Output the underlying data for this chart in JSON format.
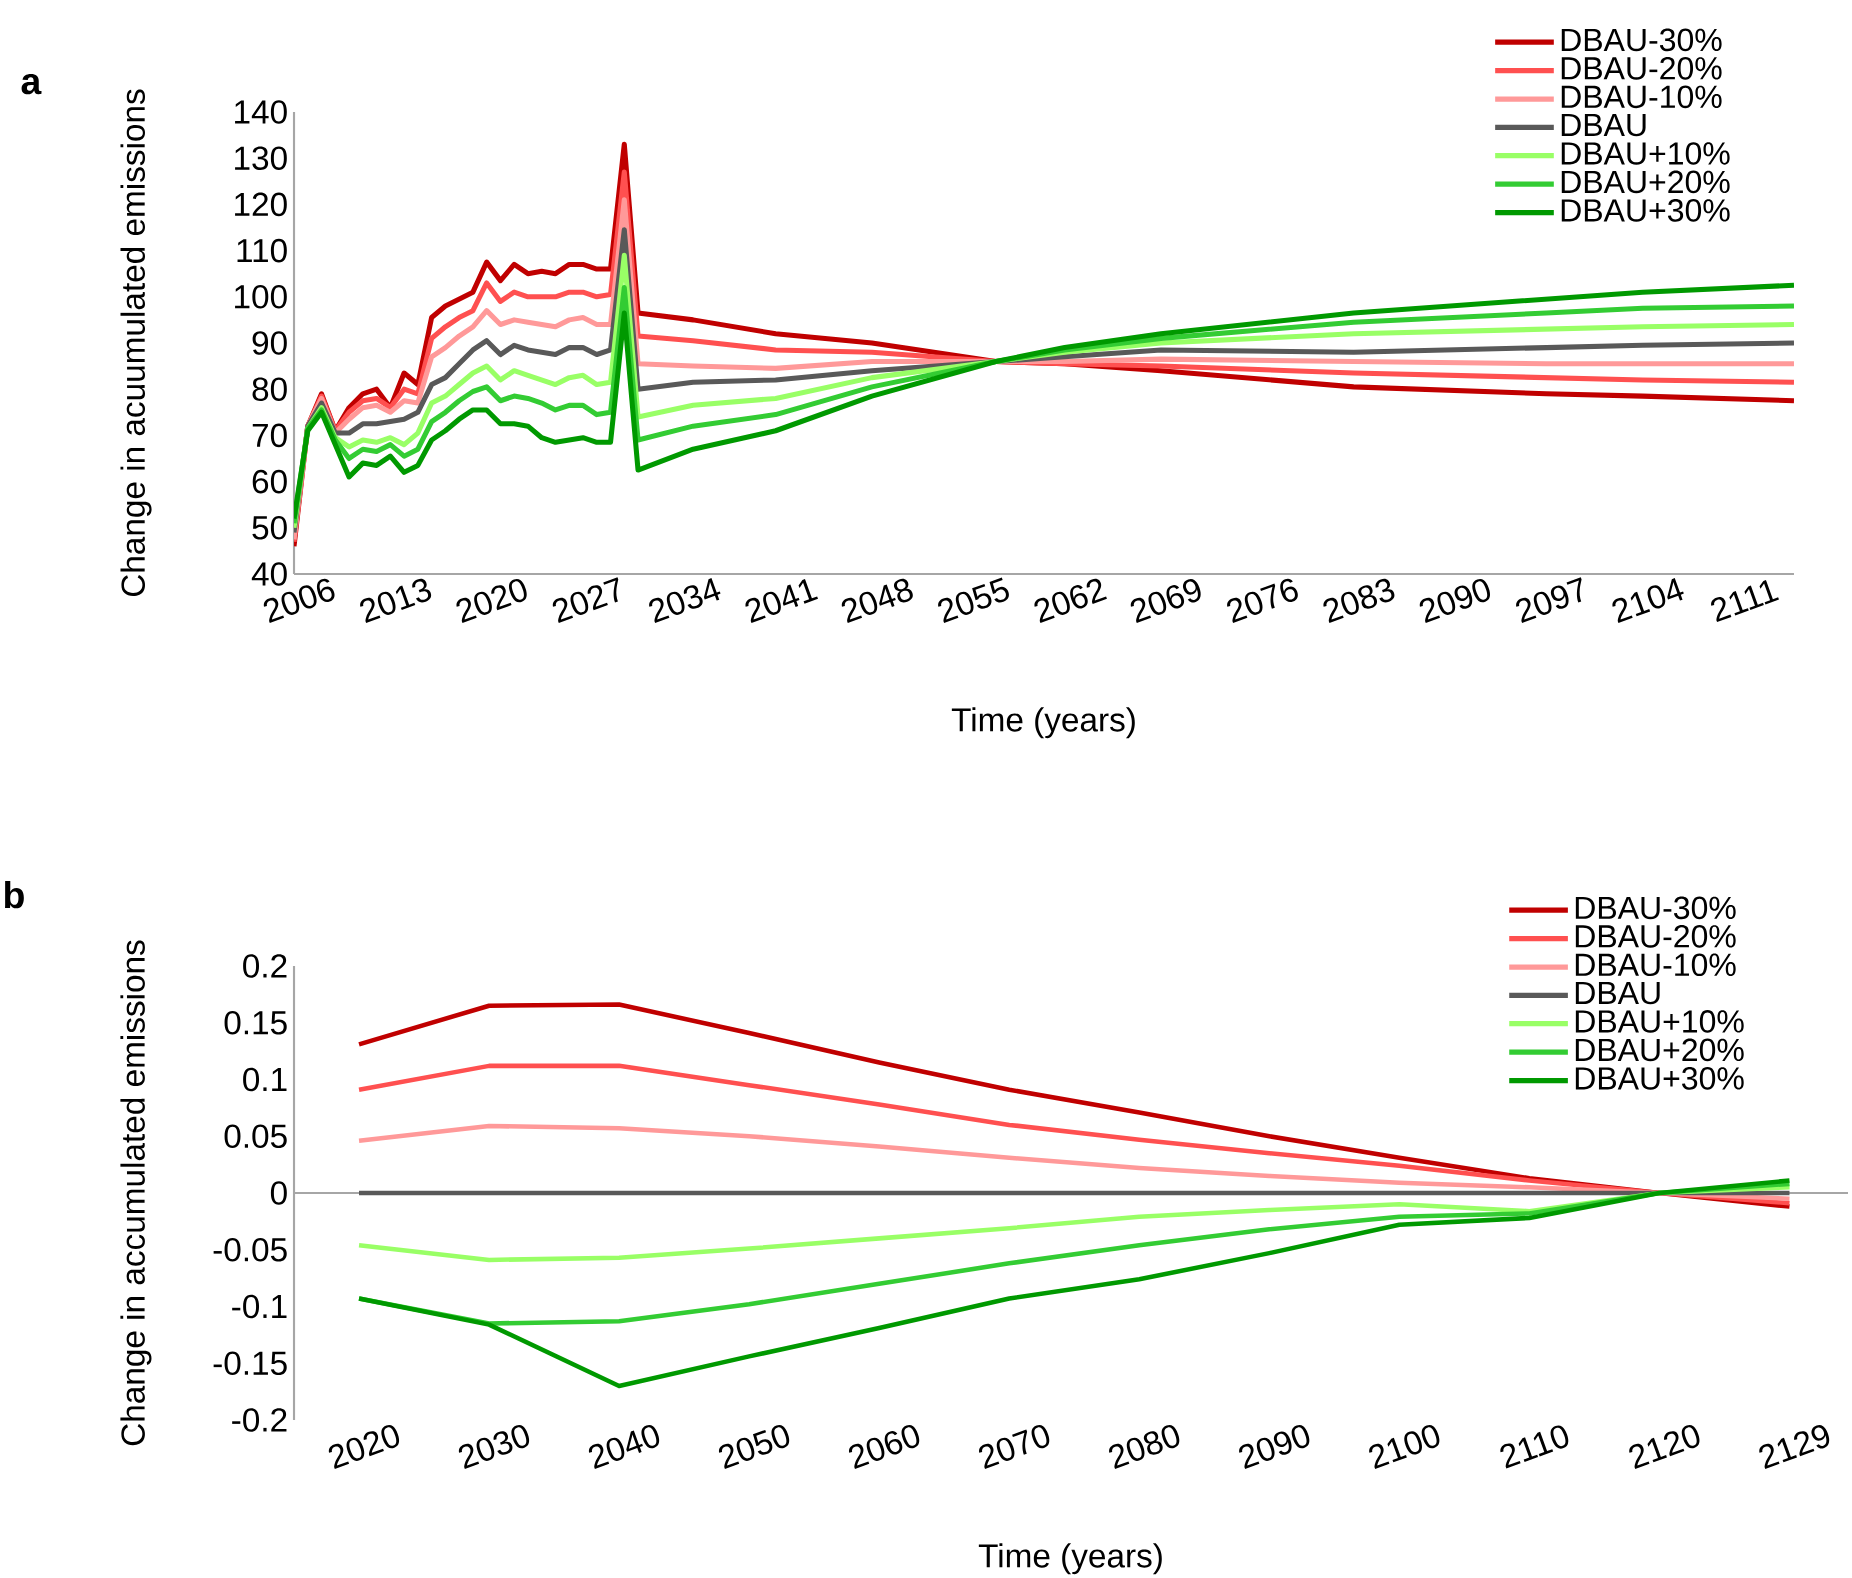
{
  "chart_data": [
    {
      "type": "line",
      "title": "a",
      "xlabel": "Time (years)",
      "ylabel": "Change in acuumulated emissions",
      "x": [
        2006,
        2007,
        2008,
        2009,
        2010,
        2011,
        2012,
        2013,
        2014,
        2015,
        2016,
        2017,
        2018,
        2019,
        2020,
        2021,
        2022,
        2023,
        2024,
        2025,
        2026,
        2027,
        2028,
        2029,
        2030,
        2031,
        2035,
        2041,
        2048,
        2057,
        2062,
        2069,
        2083,
        2097,
        2104,
        2115
      ],
      "xlim": [
        2006,
        2115
      ],
      "xticks": [
        2006,
        2013,
        2020,
        2027,
        2034,
        2041,
        2048,
        2055,
        2062,
        2069,
        2076,
        2083,
        2090,
        2097,
        2104,
        2111
      ],
      "ylim": [
        40,
        140
      ],
      "yticks": [
        40,
        50,
        60,
        70,
        80,
        90,
        100,
        110,
        120,
        130,
        140
      ],
      "legend": "top right",
      "marker": "none",
      "series": [
        {
          "name": "DBAU-30%",
          "color": "#c00000",
          "values": [
            46,
            72,
            79,
            71,
            76,
            79,
            80,
            76,
            83.5,
            81,
            95.5,
            98,
            99.5,
            101,
            107.5,
            103.5,
            107,
            105,
            105.5,
            105,
            107,
            107,
            106,
            106,
            133,
            96.5,
            95,
            92,
            90,
            86,
            85.5,
            84,
            80.5,
            79,
            78.5,
            77.5
          ]
        },
        {
          "name": "DBAU-20%",
          "color": "#ff5050",
          "values": [
            47,
            72,
            78.5,
            71,
            75,
            77.5,
            78,
            76,
            80,
            79,
            91,
            93.5,
            95.5,
            97,
            103,
            99,
            101,
            100,
            100,
            100,
            101,
            101,
            100,
            100.5,
            127,
            91.5,
            90.5,
            88.5,
            88,
            86,
            85.5,
            85,
            83.5,
            82.5,
            82,
            81.5
          ]
        },
        {
          "name": "DBAU-10%",
          "color": "#ff9999",
          "values": [
            47.5,
            72,
            78,
            70.5,
            73.5,
            76,
            76.5,
            75,
            77.5,
            77,
            87,
            89,
            91.5,
            93.5,
            97,
            94,
            95,
            94.5,
            94,
            93.5,
            95,
            95.5,
            94,
            94,
            121,
            85.5,
            85,
            84.5,
            86,
            86,
            86,
            86.5,
            86,
            85.5,
            85.5,
            85.5
          ]
        },
        {
          "name": "DBAU",
          "color": "#595959",
          "values": [
            49,
            72,
            77,
            70.5,
            70.5,
            72.5,
            72.5,
            73,
            73.5,
            75,
            81,
            82.5,
            85.5,
            88.5,
            90.5,
            87.5,
            89.5,
            88.5,
            88,
            87.5,
            89,
            89,
            87.5,
            88.5,
            114.5,
            80,
            81.5,
            82,
            84,
            86,
            87,
            88.5,
            88,
            89,
            89.5,
            90
          ]
        },
        {
          "name": "DBAU+10%",
          "color": "#99ff66",
          "values": [
            50,
            71.5,
            76,
            69.5,
            67.5,
            69,
            68.5,
            69.5,
            68,
            70.5,
            77,
            78.5,
            81,
            83.5,
            85,
            82,
            84,
            83,
            82,
            81,
            82.5,
            83,
            81,
            81.5,
            109,
            74,
            76.5,
            78,
            82.5,
            86,
            88,
            90,
            92,
            93,
            93.5,
            94
          ]
        },
        {
          "name": "DBAU+20%",
          "color": "#33cc33",
          "values": [
            51,
            71.5,
            75.5,
            69,
            65,
            67,
            66.5,
            68,
            65.5,
            67,
            73,
            75,
            77.5,
            79.5,
            80.5,
            77.5,
            78.5,
            78,
            77,
            75.5,
            76.5,
            76.5,
            74.5,
            75,
            102,
            69,
            72,
            74.5,
            80.5,
            86,
            88.5,
            91,
            94.5,
            96.5,
            97.5,
            98
          ]
        },
        {
          "name": "DBAU+30%",
          "color": "#009900",
          "values": [
            52,
            71,
            75,
            68,
            61,
            64,
            63.5,
            65.5,
            62,
            63.5,
            69,
            71,
            73.5,
            75.5,
            75.5,
            72.5,
            72.5,
            72,
            69.5,
            68.5,
            69,
            69.5,
            68.5,
            68.5,
            96.5,
            62.5,
            67,
            71,
            78.5,
            86,
            89,
            92,
            96.5,
            99.5,
            101,
            102.5
          ]
        }
      ]
    },
    {
      "type": "line",
      "title": "b",
      "xlabel": "Time (years)",
      "ylabel": "Change in accumulated emissions",
      "categories": [
        "2020",
        "2030",
        "2040",
        "2050",
        "2060",
        "2070",
        "2080",
        "2090",
        "2100",
        "2110",
        "2120",
        "2129"
      ],
      "ylim": [
        -0.2,
        0.2
      ],
      "yticks": [
        -0.2,
        -0.15,
        -0.1,
        -0.05,
        0,
        0.05,
        0.1,
        0.15,
        0.2
      ],
      "legend": "top right",
      "marker": "none",
      "series": [
        {
          "name": "DBAU-30%",
          "color": "#c00000",
          "values": [
            0.131,
            0.165,
            0.166,
            0.141,
            0.115,
            0.091,
            0.071,
            0.05,
            0.031,
            0.013,
            0,
            -0.012
          ]
        },
        {
          "name": "DBAU-20%",
          "color": "#ff5050",
          "values": [
            0.091,
            0.112,
            0.112,
            0.095,
            0.078,
            0.06,
            0.047,
            0.035,
            0.024,
            0.011,
            0,
            -0.009
          ]
        },
        {
          "name": "DBAU-10%",
          "color": "#ff9999",
          "values": [
            0.046,
            0.059,
            0.057,
            0.05,
            0.041,
            0.031,
            0.022,
            0.015,
            0.009,
            0.005,
            0,
            -0.005
          ]
        },
        {
          "name": "DBAU",
          "color": "#595959",
          "values": [
            0,
            0,
            0,
            0,
            0,
            0,
            0,
            0,
            0,
            0,
            0,
            0
          ]
        },
        {
          "name": "DBAU+10%",
          "color": "#99ff66",
          "values": [
            -0.046,
            -0.059,
            -0.057,
            -0.049,
            -0.04,
            -0.031,
            -0.021,
            -0.015,
            -0.01,
            -0.016,
            0,
            0.005
          ]
        },
        {
          "name": "DBAU+20%",
          "color": "#33cc33",
          "values": [
            -0.093,
            -0.115,
            -0.113,
            -0.098,
            -0.08,
            -0.062,
            -0.046,
            -0.032,
            -0.021,
            -0.018,
            0,
            0.008
          ]
        },
        {
          "name": "DBAU+30%",
          "color": "#009900",
          "values": [
            -0.093,
            -0.116,
            -0.17,
            -0.144,
            -0.119,
            -0.093,
            -0.076,
            -0.053,
            -0.028,
            -0.022,
            0,
            0.011
          ]
        }
      ]
    }
  ]
}
